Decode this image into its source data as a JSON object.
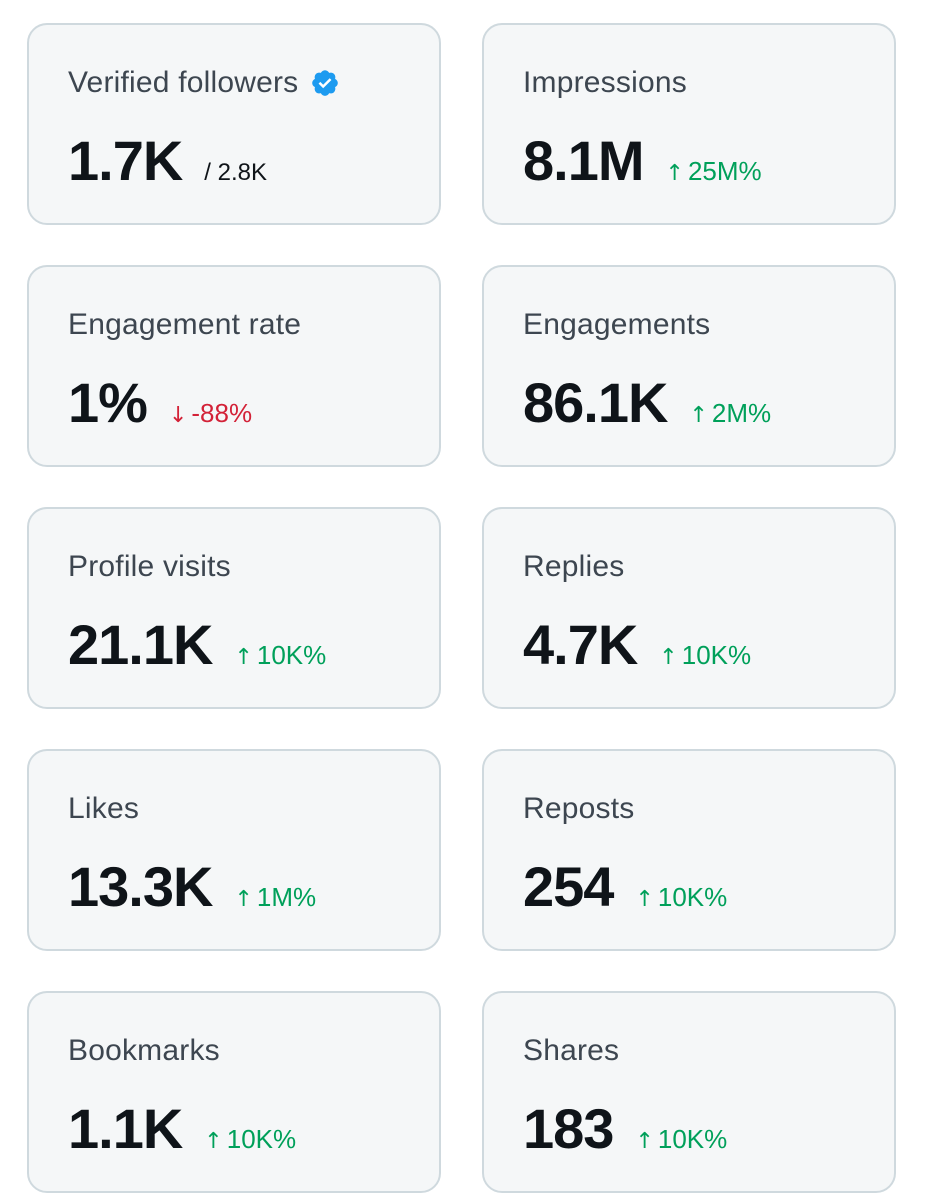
{
  "colors": {
    "card_bg": "#f5f7f8",
    "card_border": "#cfd9de",
    "label": "#3d4650",
    "value": "#0f1419",
    "positive": "#00a05a",
    "negative": "#d32238",
    "verified": "#1d9bf0"
  },
  "cards": [
    {
      "label": "Verified followers",
      "value": "1.7K",
      "sub": "/ 2.8K",
      "verified": true
    },
    {
      "label": "Impressions",
      "value": "8.1M",
      "delta": "25M%",
      "direction": "up"
    },
    {
      "label": "Engagement rate",
      "value": "1%",
      "delta": "-88%",
      "direction": "down"
    },
    {
      "label": "Engagements",
      "value": "86.1K",
      "delta": "2M%",
      "direction": "up"
    },
    {
      "label": "Profile visits",
      "value": "21.1K",
      "delta": "10K%",
      "direction": "up"
    },
    {
      "label": "Replies",
      "value": "4.7K",
      "delta": "10K%",
      "direction": "up"
    },
    {
      "label": "Likes",
      "value": "13.3K",
      "delta": "1M%",
      "direction": "up"
    },
    {
      "label": "Reposts",
      "value": "254",
      "delta": "10K%",
      "direction": "up"
    },
    {
      "label": "Bookmarks",
      "value": "1.1K",
      "delta": "10K%",
      "direction": "up"
    },
    {
      "label": "Shares",
      "value": "183",
      "delta": "10K%",
      "direction": "up"
    }
  ],
  "icons": {
    "verified": "verified-badge-icon",
    "up": "arrow-up-icon",
    "down": "arrow-down-icon"
  },
  "arrows": {
    "up": "↑",
    "down": "↓"
  }
}
